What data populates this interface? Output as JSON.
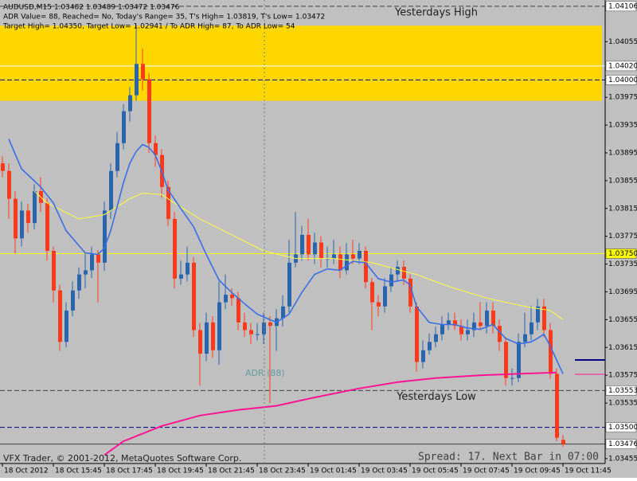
{
  "chart_data": {
    "type": "candlestick",
    "header": [
      "AUDUSD,M15  1.03482 1.03489 1.03472 1.03476",
      "ADR Value= 88, Reached= No, Today's Range= 35, T's High= 1.03819, T's Low= 1.03472",
      "Target High= 1.04350, Target Low= 1.02941 / To ADR High= 87, To ADR Low= 54"
    ],
    "annotation": "ADR (88)",
    "footer_left": "VFX Trader, © 2001-2012, MetaQuotes Software Corp.",
    "footer_right": "Spread: 17. Next Bar in 07:00",
    "background": "#c0c0c0",
    "up_color": "#2a64ad",
    "down_color": "#ff3a1a",
    "ylim": [
      1.03448,
      1.04115
    ],
    "yticks": [
      1.04055,
      1.03975,
      1.03935,
      1.03895,
      1.03855,
      1.03815,
      1.03775,
      1.03735,
      1.03695,
      1.03655,
      1.03615,
      1.03575,
      1.03535,
      1.03455
    ],
    "zone": {
      "high": 1.04078,
      "low": 1.0397,
      "color": "#ffd700"
    },
    "x_labels": [
      {
        "bar": 0,
        "label": "18 Oct 2012"
      },
      {
        "bar": 8,
        "label": "18 Oct 15:45"
      },
      {
        "bar": 16,
        "label": "18 Oct 17:45"
      },
      {
        "bar": 24,
        "label": "18 Oct 19:45"
      },
      {
        "bar": 32,
        "label": "18 Oct 21:45"
      },
      {
        "bar": 40,
        "label": "18 Oct 23:45"
      },
      {
        "bar": 48,
        "label": "19 Oct 01:45"
      },
      {
        "bar": 56,
        "label": "19 Oct 03:45"
      },
      {
        "bar": 64,
        "label": "19 Oct 05:45"
      },
      {
        "bar": 72,
        "label": "19 Oct 07:45"
      },
      {
        "bar": 80,
        "label": "19 Oct 09:45"
      },
      {
        "bar": 88,
        "label": "19 Oct 11:45"
      }
    ],
    "open": [
      1.0388,
      1.03869,
      1.03829,
      1.03772,
      1.03812,
      1.03794,
      1.0384,
      1.03823,
      1.03754,
      1.03697,
      1.03623,
      1.03668,
      1.03697,
      1.0372,
      1.03726,
      1.03749,
      1.03737,
      1.03812,
      1.03869,
      1.03909,
      1.03955,
      1.03978,
      1.04023,
      1.04001,
      1.03909,
      1.03892,
      1.03846,
      1.038,
      1.03714,
      1.0372,
      1.03737,
      1.0364,
      1.03606,
      1.03651,
      1.03611,
      1.0368,
      1.03691,
      1.03686,
      1.03651,
      1.0364,
      1.03634,
      1.03634,
      1.03651,
      1.03646,
      1.03657,
      1.03674,
      1.03737,
      1.03749,
      1.03777,
      1.03749,
      1.03766,
      1.03743,
      1.03743,
      1.03749,
      1.03726,
      1.03749,
      1.03743,
      1.03754,
      1.03709,
      1.0368,
      1.03674,
      1.03703,
      1.0372,
      1.03731,
      1.03714,
      1.03674,
      1.03594,
      1.03611,
      1.03623,
      1.03634,
      1.03648,
      1.03654,
      1.03646,
      1.03634,
      1.0364,
      1.03651,
      1.03646,
      1.03668,
      1.03646,
      1.03623,
      1.03571,
      1.03571,
      1.03623,
      1.03634,
      1.03651,
      1.03674,
      1.0364,
      1.03577,
      1.03482
    ],
    "high": [
      1.0389,
      1.0388,
      1.0384,
      1.03825,
      1.03822,
      1.0385,
      1.0386,
      1.0383,
      1.0376,
      1.03705,
      1.0368,
      1.0371,
      1.0373,
      1.0375,
      1.0376,
      1.03755,
      1.03825,
      1.0388,
      1.03925,
      1.03965,
      1.0399,
      1.0408,
      1.04045,
      1.0401,
      1.0392,
      1.039,
      1.03855,
      1.0381,
      1.0374,
      1.0376,
      1.03745,
      1.0365,
      1.03665,
      1.0366,
      1.0371,
      1.0372,
      1.037,
      1.03695,
      1.03665,
      1.0365,
      1.0365,
      1.03665,
      1.0366,
      1.0367,
      1.0369,
      1.0377,
      1.0381,
      1.0379,
      1.038,
      1.0378,
      1.03775,
      1.0376,
      1.0377,
      1.0376,
      1.03765,
      1.0377,
      1.03765,
      1.0376,
      1.03715,
      1.0369,
      1.03715,
      1.0373,
      1.0374,
      1.0374,
      1.0372,
      1.0368,
      1.03625,
      1.03635,
      1.03645,
      1.0366,
      1.03665,
      1.03665,
      1.03655,
      1.03655,
      1.03665,
      1.0368,
      1.0368,
      1.0368,
      1.03655,
      1.0363,
      1.03585,
      1.03635,
      1.03665,
      1.03675,
      1.03685,
      1.03685,
      1.0365,
      1.03585,
      1.03489
    ],
    "low": [
      1.0386,
      1.038,
      1.0375,
      1.0376,
      1.0378,
      1.03785,
      1.0381,
      1.0374,
      1.0368,
      1.0361,
      1.03615,
      1.0366,
      1.03685,
      1.037,
      1.03715,
      1.0368,
      1.03725,
      1.038,
      1.0386,
      1.039,
      1.0394,
      1.0397,
      1.03985,
      1.03895,
      1.03875,
      1.0383,
      1.0379,
      1.037,
      1.03705,
      1.0371,
      1.0363,
      1.0356,
      1.03595,
      1.036,
      1.0359,
      1.0367,
      1.03675,
      1.0364,
      1.0363,
      1.0362,
      1.03625,
      1.0362,
      1.03535,
      1.0361,
      1.03645,
      1.03665,
      1.0373,
      1.0374,
      1.0374,
      1.03735,
      1.0373,
      1.0373,
      1.03735,
      1.03715,
      1.0372,
      1.03735,
      1.03735,
      1.037,
      1.0364,
      1.0366,
      1.03665,
      1.03695,
      1.0371,
      1.03705,
      1.03665,
      1.0358,
      1.03585,
      1.03605,
      1.03615,
      1.03625,
      1.0364,
      1.0364,
      1.03625,
      1.03625,
      1.0363,
      1.0364,
      1.03635,
      1.03635,
      1.0361,
      1.0356,
      1.0356,
      1.03565,
      1.03615,
      1.03625,
      1.0364,
      1.0363,
      1.0357,
      1.0348,
      1.03472
    ],
    "close": [
      1.03869,
      1.03829,
      1.03772,
      1.03812,
      1.03794,
      1.0384,
      1.03823,
      1.03754,
      1.03697,
      1.03623,
      1.03668,
      1.03697,
      1.0372,
      1.03726,
      1.03749,
      1.03737,
      1.03812,
      1.03869,
      1.03909,
      1.03955,
      1.03978,
      1.04023,
      1.04001,
      1.03909,
      1.03892,
      1.03846,
      1.038,
      1.03714,
      1.0372,
      1.03737,
      1.0364,
      1.03606,
      1.03651,
      1.03611,
      1.0368,
      1.03691,
      1.03686,
      1.03651,
      1.0364,
      1.03634,
      1.03634,
      1.03651,
      1.03646,
      1.03657,
      1.03674,
      1.03737,
      1.03749,
      1.03777,
      1.03749,
      1.03766,
      1.03743,
      1.03743,
      1.03749,
      1.03726,
      1.03749,
      1.03743,
      1.03754,
      1.03709,
      1.0368,
      1.03674,
      1.03703,
      1.0372,
      1.03731,
      1.03714,
      1.03674,
      1.03594,
      1.03611,
      1.03623,
      1.03634,
      1.03648,
      1.03654,
      1.03646,
      1.03634,
      1.0364,
      1.03651,
      1.03646,
      1.03668,
      1.03646,
      1.03623,
      1.03571,
      1.03571,
      1.03623,
      1.03634,
      1.03651,
      1.03674,
      1.0364,
      1.03577,
      1.03485,
      1.03476
    ],
    "lines": [
      {
        "color": "#ffff40",
        "width": 1,
        "x": [
          5,
          7,
          12,
          16,
          20,
          22,
          25,
          27,
          31,
          36,
          41,
          46,
          52,
          58,
          65,
          70,
          76,
          82,
          86,
          88
        ],
        "values": [
          1.0384,
          1.03823,
          1.038,
          1.03806,
          1.03829,
          1.03837,
          1.03835,
          1.03823,
          1.038,
          1.03777,
          1.03754,
          1.03743,
          1.03743,
          1.03737,
          1.0372,
          1.03703,
          1.03686,
          1.03674,
          1.03668,
          1.03655
        ]
      },
      {
        "color": "#ff1493",
        "width": 2,
        "x": [
          16,
          19,
          25,
          31,
          37,
          43,
          49,
          56,
          62,
          68,
          75,
          81,
          87
        ],
        "values": [
          1.0346,
          1.0348,
          1.03502,
          1.03517,
          1.03525,
          1.03531,
          1.03543,
          1.03556,
          1.03565,
          1.03571,
          1.03575,
          1.03577,
          1.03579
        ]
      },
      {
        "color": "#3a6ee8",
        "width": 1.6,
        "x": [
          1,
          3,
          6,
          8,
          10,
          13,
          15,
          16,
          17,
          18,
          19,
          20,
          21,
          22,
          23,
          24,
          25,
          26,
          28,
          30,
          32,
          34,
          36,
          38,
          40,
          43,
          45,
          47,
          49,
          51,
          53,
          55,
          57,
          59,
          61,
          63,
          64,
          65,
          67,
          69,
          71,
          73,
          75,
          77,
          79,
          81,
          83,
          84,
          85,
          86,
          88
        ],
        "values": [
          1.03915,
          1.03872,
          1.03846,
          1.03823,
          1.03783,
          1.03751,
          1.03749,
          1.03758,
          1.03783,
          1.03817,
          1.03852,
          1.0388,
          1.03897,
          1.03907,
          1.03903,
          1.03892,
          1.03869,
          1.03842,
          1.03815,
          1.03789,
          1.03749,
          1.03712,
          1.03694,
          1.03678,
          1.03663,
          1.03651,
          1.03663,
          1.03694,
          1.0372,
          1.03728,
          1.03726,
          1.03739,
          1.03737,
          1.03714,
          1.03709,
          1.03712,
          1.03705,
          1.03674,
          1.03651,
          1.03648,
          1.03648,
          1.03643,
          1.03641,
          1.03648,
          1.03628,
          1.0362,
          1.03623,
          1.03628,
          1.03634,
          1.03617,
          1.03577
        ]
      }
    ],
    "levels": [
      {
        "price": 1.04106,
        "color": "#404040",
        "dash": true,
        "box": "#ffffff",
        "name": "Yesterdays High"
      },
      {
        "price": 1.0402,
        "price_label": "1.04020",
        "color": "#ffffff",
        "dash": false,
        "box": "#ffffff"
      },
      {
        "price": 1.04,
        "price_label": "1.04000",
        "color": "#000080",
        "dash": true,
        "box": "#ffffff"
      },
      {
        "price": 1.0375,
        "price_label": "1.03750",
        "color": "#ffff00",
        "dash": false,
        "box": "#ffff00"
      },
      {
        "price": 1.03553,
        "color": "#404040",
        "dash": true,
        "box": "#ffffff",
        "name": "Yesterdays Low"
      },
      {
        "price": 1.035,
        "price_label": "1.03500",
        "color": "#000080",
        "dash": true,
        "box": "#ffffff"
      },
      {
        "price": 1.03476,
        "color": "#404040",
        "dash": false,
        "box": "#ffffff"
      }
    ]
  }
}
